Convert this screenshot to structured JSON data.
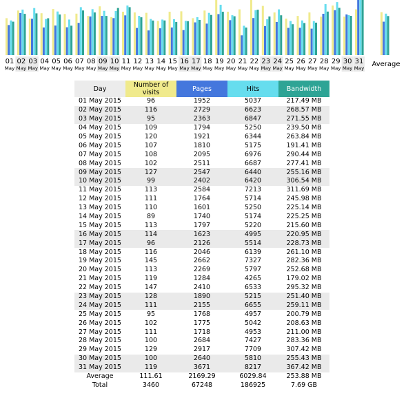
{
  "colors": {
    "visits": "#f0ea8c",
    "pages": "#4477dd",
    "hits": "#66ddee",
    "bandwidth": "#2ea495",
    "header_day": "#ececec",
    "weekend_row": "#eaeaea"
  },
  "chart_data": {
    "type": "bar",
    "x_day": [
      "01",
      "02",
      "03",
      "04",
      "05",
      "06",
      "07",
      "08",
      "09",
      "10",
      "11",
      "12",
      "13",
      "14",
      "15",
      "16",
      "17",
      "18",
      "19",
      "20",
      "21",
      "22",
      "23",
      "24",
      "25",
      "26",
      "27",
      "28",
      "29",
      "30",
      "31"
    ],
    "x_month": "May",
    "weekend_indices": [
      1,
      2,
      8,
      9,
      15,
      16,
      22,
      23,
      29,
      30
    ],
    "average_label": "Average",
    "series": [
      {
        "name": "Number of visits",
        "values": [
          96,
          116,
          95,
          109,
          120,
          107,
          108,
          102,
          127,
          99,
          113,
          111,
          110,
          89,
          113,
          114,
          96,
          116,
          145,
          113,
          119,
          147,
          128,
          111,
          95,
          102,
          111,
          100,
          129,
          100,
          119
        ],
        "average": 111.61
      },
      {
        "name": "Pages",
        "values": [
          1952,
          2729,
          2363,
          1794,
          1921,
          1810,
          2095,
          2511,
          2547,
          2402,
          2584,
          1764,
          1601,
          1740,
          1797,
          1623,
          2126,
          2046,
          2662,
          2269,
          1284,
          2410,
          1890,
          2155,
          1768,
          1775,
          1718,
          2684,
          2917,
          2640,
          3671
        ],
        "average": 2169.29
      },
      {
        "name": "Hits",
        "values": [
          5037,
          6623,
          6847,
          5250,
          6344,
          5175,
          6976,
          6687,
          6440,
          6420,
          7213,
          5714,
          5250,
          5174,
          5220,
          4995,
          5514,
          6139,
          7327,
          5797,
          4265,
          6533,
          5215,
          6655,
          4957,
          5042,
          4953,
          7427,
          7709,
          5810,
          8217
        ],
        "average": 6029.84
      },
      {
        "name": "Bandwidth",
        "unit": "MB",
        "values": [
          217.49,
          268.57,
          271.55,
          239.5,
          263.84,
          191.41,
          290.44,
          277.41,
          255.16,
          306.54,
          311.69,
          245.98,
          225.14,
          225.25,
          215.6,
          220.95,
          228.73,
          261.1,
          282.36,
          252.68,
          179.02,
          295.32,
          251.4,
          259.11,
          200.79,
          208.63,
          211.0,
          283.36,
          307.42,
          255.43,
          367.42
        ],
        "average": 253.88
      }
    ]
  },
  "table": {
    "headers": {
      "day": "Day",
      "visits": "Number of visits",
      "pages": "Pages",
      "hits": "Hits",
      "bandwidth": "Bandwidth"
    },
    "rows": [
      {
        "day": "01 May 2015",
        "visits": "96",
        "pages": "1952",
        "hits": "5037",
        "bandwidth": "217.49 MB"
      },
      {
        "day": "02 May 2015",
        "visits": "116",
        "pages": "2729",
        "hits": "6623",
        "bandwidth": "268.57 MB"
      },
      {
        "day": "03 May 2015",
        "visits": "95",
        "pages": "2363",
        "hits": "6847",
        "bandwidth": "271.55 MB"
      },
      {
        "day": "04 May 2015",
        "visits": "109",
        "pages": "1794",
        "hits": "5250",
        "bandwidth": "239.50 MB"
      },
      {
        "day": "05 May 2015",
        "visits": "120",
        "pages": "1921",
        "hits": "6344",
        "bandwidth": "263.84 MB"
      },
      {
        "day": "06 May 2015",
        "visits": "107",
        "pages": "1810",
        "hits": "5175",
        "bandwidth": "191.41 MB"
      },
      {
        "day": "07 May 2015",
        "visits": "108",
        "pages": "2095",
        "hits": "6976",
        "bandwidth": "290.44 MB"
      },
      {
        "day": "08 May 2015",
        "visits": "102",
        "pages": "2511",
        "hits": "6687",
        "bandwidth": "277.41 MB"
      },
      {
        "day": "09 May 2015",
        "visits": "127",
        "pages": "2547",
        "hits": "6440",
        "bandwidth": "255.16 MB"
      },
      {
        "day": "10 May 2015",
        "visits": "99",
        "pages": "2402",
        "hits": "6420",
        "bandwidth": "306.54 MB"
      },
      {
        "day": "11 May 2015",
        "visits": "113",
        "pages": "2584",
        "hits": "7213",
        "bandwidth": "311.69 MB"
      },
      {
        "day": "12 May 2015",
        "visits": "111",
        "pages": "1764",
        "hits": "5714",
        "bandwidth": "245.98 MB"
      },
      {
        "day": "13 May 2015",
        "visits": "110",
        "pages": "1601",
        "hits": "5250",
        "bandwidth": "225.14 MB"
      },
      {
        "day": "14 May 2015",
        "visits": "89",
        "pages": "1740",
        "hits": "5174",
        "bandwidth": "225.25 MB"
      },
      {
        "day": "15 May 2015",
        "visits": "113",
        "pages": "1797",
        "hits": "5220",
        "bandwidth": "215.60 MB"
      },
      {
        "day": "16 May 2015",
        "visits": "114",
        "pages": "1623",
        "hits": "4995",
        "bandwidth": "220.95 MB"
      },
      {
        "day": "17 May 2015",
        "visits": "96",
        "pages": "2126",
        "hits": "5514",
        "bandwidth": "228.73 MB"
      },
      {
        "day": "18 May 2015",
        "visits": "116",
        "pages": "2046",
        "hits": "6139",
        "bandwidth": "261.10 MB"
      },
      {
        "day": "19 May 2015",
        "visits": "145",
        "pages": "2662",
        "hits": "7327",
        "bandwidth": "282.36 MB"
      },
      {
        "day": "20 May 2015",
        "visits": "113",
        "pages": "2269",
        "hits": "5797",
        "bandwidth": "252.68 MB"
      },
      {
        "day": "21 May 2015",
        "visits": "119",
        "pages": "1284",
        "hits": "4265",
        "bandwidth": "179.02 MB"
      },
      {
        "day": "22 May 2015",
        "visits": "147",
        "pages": "2410",
        "hits": "6533",
        "bandwidth": "295.32 MB"
      },
      {
        "day": "23 May 2015",
        "visits": "128",
        "pages": "1890",
        "hits": "5215",
        "bandwidth": "251.40 MB"
      },
      {
        "day": "24 May 2015",
        "visits": "111",
        "pages": "2155",
        "hits": "6655",
        "bandwidth": "259.11 MB"
      },
      {
        "day": "25 May 2015",
        "visits": "95",
        "pages": "1768",
        "hits": "4957",
        "bandwidth": "200.79 MB"
      },
      {
        "day": "26 May 2015",
        "visits": "102",
        "pages": "1775",
        "hits": "5042",
        "bandwidth": "208.63 MB"
      },
      {
        "day": "27 May 2015",
        "visits": "111",
        "pages": "1718",
        "hits": "4953",
        "bandwidth": "211.00 MB"
      },
      {
        "day": "28 May 2015",
        "visits": "100",
        "pages": "2684",
        "hits": "7427",
        "bandwidth": "283.36 MB"
      },
      {
        "day": "29 May 2015",
        "visits": "129",
        "pages": "2917",
        "hits": "7709",
        "bandwidth": "307.42 MB"
      },
      {
        "day": "30 May 2015",
        "visits": "100",
        "pages": "2640",
        "hits": "5810",
        "bandwidth": "255.43 MB"
      },
      {
        "day": "31 May 2015",
        "visits": "119",
        "pages": "3671",
        "hits": "8217",
        "bandwidth": "367.42 MB"
      }
    ],
    "average": {
      "label": "Average",
      "visits": "111.61",
      "pages": "2169.29",
      "hits": "6029.84",
      "bandwidth": "253.88 MB"
    },
    "total": {
      "label": "Total",
      "visits": "3460",
      "pages": "67248",
      "hits": "186925",
      "bandwidth": "7.69 GB"
    }
  }
}
